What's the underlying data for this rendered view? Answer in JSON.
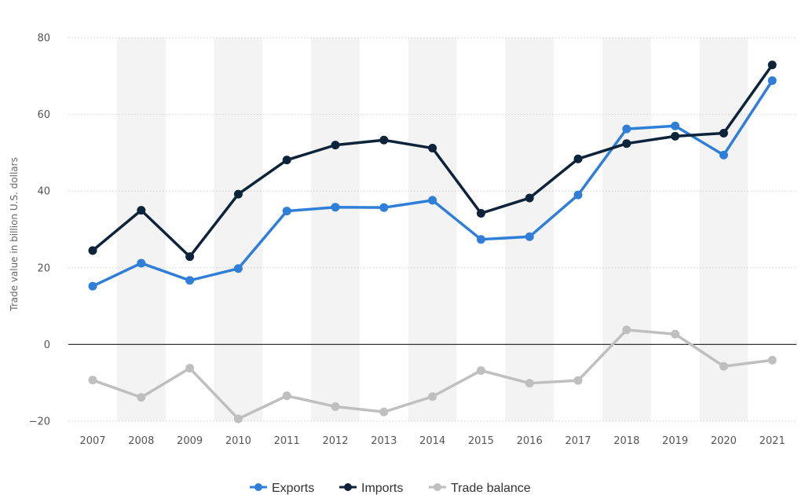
{
  "chart_data": {
    "type": "line",
    "categories": [
      "2007",
      "2008",
      "2009",
      "2010",
      "2011",
      "2012",
      "2013",
      "2014",
      "2015",
      "2016",
      "2017",
      "2018",
      "2019",
      "2020",
      "2021"
    ],
    "series": [
      {
        "name": "Exports",
        "color": "#2f7ed8",
        "values": [
          15.2,
          21.2,
          16.7,
          19.8,
          34.8,
          35.8,
          35.7,
          37.6,
          27.4,
          28.1,
          39.0,
          56.2,
          57.0,
          49.4,
          68.8
        ]
      },
      {
        "name": "Imports",
        "color": "#0d233a",
        "values": [
          24.5,
          35.0,
          22.9,
          39.2,
          48.1,
          52.0,
          53.3,
          51.2,
          34.2,
          38.2,
          48.4,
          52.4,
          54.3,
          55.1,
          72.9
        ]
      },
      {
        "name": "Trade balance",
        "color": "#bfbfbf",
        "values": [
          -9.3,
          -13.8,
          -6.2,
          -19.4,
          -13.4,
          -16.2,
          -17.6,
          -13.6,
          -6.8,
          -10.1,
          -9.4,
          3.8,
          2.7,
          -5.7,
          -4.1
        ]
      }
    ],
    "ylabel": "Trade value in billion U.S. dollars",
    "xlabel": "",
    "ylim": [
      -20,
      80
    ],
    "yticks": [
      "80",
      "60",
      "40",
      "20",
      "0",
      "−20"
    ],
    "ytick_values": [
      80,
      60,
      40,
      20,
      0,
      -20
    ],
    "grid": true,
    "legend_position": "bottom"
  }
}
